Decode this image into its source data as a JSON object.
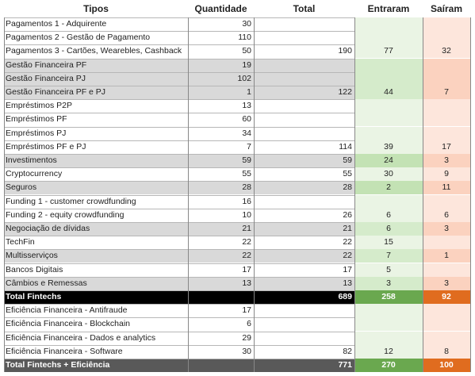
{
  "headers": {
    "tipos": "Tipos",
    "quantidade": "Quantidade",
    "total": "Total",
    "entraram": "Entraram",
    "sairam": "Saíram"
  },
  "rows": [
    {
      "tipo": "Pagamentos 1 - Adquirente",
      "qtd": "30",
      "total": "",
      "ent": "",
      "sai": "",
      "style": "white"
    },
    {
      "tipo": "Pagamentos 2 - Gestão de Pagamento",
      "qtd": "110",
      "total": "",
      "ent": "",
      "sai": "",
      "style": "white"
    },
    {
      "tipo": "Pagamentos 3 - Cartões, Wearebles, Cashback",
      "qtd": "50",
      "total": "190",
      "ent": "77",
      "sai": "32",
      "style": "white"
    },
    {
      "tipo": "Gestão Financeira PF",
      "qtd": "19",
      "total": "",
      "ent": "",
      "sai": "",
      "style": "grey"
    },
    {
      "tipo": "Gestão Financeira PJ",
      "qtd": "102",
      "total": "",
      "ent": "",
      "sai": "",
      "style": "grey"
    },
    {
      "tipo": "Gestão Financeira PF e PJ",
      "qtd": "1",
      "total": "122",
      "ent": "44",
      "sai": "7",
      "style": "grey"
    },
    {
      "tipo": "Empréstimos P2P",
      "qtd": "13",
      "total": "",
      "ent": "",
      "sai": "",
      "style": "white"
    },
    {
      "tipo": "Empréstimos PF",
      "qtd": "60",
      "total": "",
      "ent": "",
      "sai": "",
      "style": "white"
    },
    {
      "tipo": "Empréstimos PJ",
      "qtd": "34",
      "total": "",
      "ent": "",
      "sai": "",
      "style": "white"
    },
    {
      "tipo": "Empréstimos PF e PJ",
      "qtd": "7",
      "total": "114",
      "ent": "39",
      "sai": "17",
      "style": "white"
    },
    {
      "tipo": "Investimentos",
      "qtd": "59",
      "total": "59",
      "ent": "24",
      "sai": "3",
      "style": "grey"
    },
    {
      "tipo": "Cryptocurrency",
      "qtd": "55",
      "total": "55",
      "ent": "30",
      "sai": "9",
      "style": "white"
    },
    {
      "tipo": "Seguros",
      "qtd": "28",
      "total": "28",
      "ent": "2",
      "sai": "11",
      "style": "grey"
    },
    {
      "tipo": "Funding 1 - customer crowdfunding",
      "qtd": "16",
      "total": "",
      "ent": "",
      "sai": "",
      "style": "white"
    },
    {
      "tipo": "Funding 2 - equity crowdfunding",
      "qtd": "10",
      "total": "26",
      "ent": "6",
      "sai": "6",
      "style": "white"
    },
    {
      "tipo": "Negociação de dívidas",
      "qtd": "21",
      "total": "21",
      "ent": "6",
      "sai": "3",
      "style": "grey"
    },
    {
      "tipo": "TechFin",
      "qtd": "22",
      "total": "22",
      "ent": "15",
      "sai": "",
      "style": "white"
    },
    {
      "tipo": "Multisserviços",
      "qtd": "22",
      "total": "22",
      "ent": "7",
      "sai": "1",
      "style": "grey"
    },
    {
      "tipo": "Bancos Digitais",
      "qtd": "17",
      "total": "17",
      "ent": "5",
      "sai": "",
      "style": "white"
    },
    {
      "tipo": "Câmbios e Remessas",
      "qtd": "13",
      "total": "13",
      "ent": "3",
      "sai": "3",
      "style": "grey"
    },
    {
      "tipo": "Total Fintechs",
      "qtd": "",
      "total": "689",
      "ent": "258",
      "sai": "92",
      "style": "total-black"
    },
    {
      "tipo": "Eficiência Financeira - Antifraude",
      "qtd": "17",
      "total": "",
      "ent": "",
      "sai": "",
      "style": "white"
    },
    {
      "tipo": "Eficiência Financeira - Blockchain",
      "qtd": "6",
      "total": "",
      "ent": "",
      "sai": "",
      "style": "white"
    },
    {
      "tipo": "Eficiência Financeira - Dados e analytics",
      "qtd": "29",
      "total": "",
      "ent": "",
      "sai": "",
      "style": "white"
    },
    {
      "tipo": "Eficiência Financeira - Software",
      "qtd": "30",
      "total": "82",
      "ent": "12",
      "sai": "8",
      "style": "white"
    },
    {
      "tipo": "Total Fintechs + Eficiência",
      "qtd": "",
      "total": "771",
      "ent": "270",
      "sai": "100",
      "style": "total-dark"
    }
  ],
  "colors": {
    "entraram_light": "#eaf4e4",
    "entraram_mid": "#d5ebcb",
    "entraram_strong": "#c3e2b4",
    "entraram_total": "#6aa84f",
    "sairam_light": "#fde6dc",
    "sairam_mid": "#fbd2bf",
    "sairam_total": "#e06c1f"
  }
}
